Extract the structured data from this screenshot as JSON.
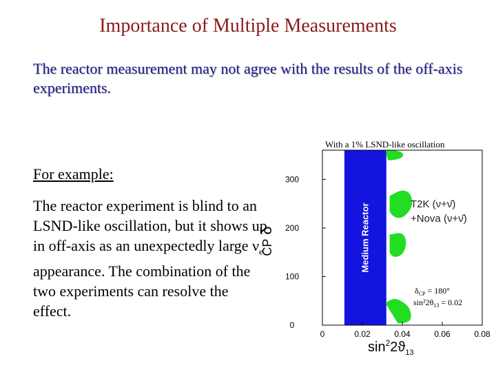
{
  "slide": {
    "title": "Importance of Multiple Measurements",
    "intro": "The reactor measurement may not agree with the results of the off-axis experiments.",
    "example_heading": "For example:",
    "body_part1": "The reactor experiment is blind to an LSND-like oscillation, but it shows up in off-axis as an unexpectedly large ν",
    "body_sub": "e",
    "body_part2": " appearance. The combination of the two experiments can resolve the effect."
  },
  "plot": {
    "caption": "With a 1% LSND-like oscillation",
    "band_label": "Medium Reactor",
    "legend_line1": "T2K (ν+ν̄)",
    "legend_line2": "+Nova (ν+ν̄)",
    "annot_delta": "δ",
    "annot_delta_sub": "CP",
    "annot_delta_value": " = 180°",
    "annot_sin": "sin²2θ",
    "annot_sin_sub": "13",
    "annot_sin_value": " = 0.02",
    "colors": {
      "band": "#1414e0",
      "region": "#22dd22",
      "frame": "#000000"
    }
  },
  "chart_data": {
    "type": "area",
    "title": "",
    "xlabel": "sin²2θ13",
    "ylabel": "δCP",
    "xlim": [
      0,
      0.08
    ],
    "ylim": [
      0,
      360
    ],
    "x_ticks": [
      "0",
      "0.02",
      "0.04",
      "0.06",
      "0.08"
    ],
    "y_ticks": [
      "0",
      "100",
      "200",
      "300"
    ],
    "bands": [
      {
        "name": "Medium Reactor",
        "x_range": [
          0.011,
          0.032
        ]
      }
    ],
    "regions": [
      {
        "name": "T2K (ν+ν̄)+Nova (ν+ν̄)",
        "points": [
          [
            0.032,
            360
          ],
          [
            0.04,
            356
          ],
          [
            0.04,
            345
          ],
          [
            0.034,
            340
          ],
          [
            0.032,
            342
          ]
        ]
      },
      {
        "name": "T2K (ν+ν̄)+Nova (ν+ν̄)",
        "points": [
          [
            0.034,
            265
          ],
          [
            0.04,
            278
          ],
          [
            0.044,
            270
          ],
          [
            0.045,
            245
          ],
          [
            0.04,
            220
          ],
          [
            0.035,
            225
          ],
          [
            0.033,
            245
          ]
        ]
      },
      {
        "name": "T2K (ν+ν̄)+Nova (ν+ν̄)",
        "points": [
          [
            0.034,
            185
          ],
          [
            0.04,
            190
          ],
          [
            0.042,
            170
          ],
          [
            0.04,
            145
          ],
          [
            0.035,
            140
          ],
          [
            0.033,
            160
          ]
        ]
      },
      {
        "name": "T2K (ν+ν̄)+Nova (ν+ν̄)",
        "points": [
          [
            0.032,
            45
          ],
          [
            0.036,
            55
          ],
          [
            0.041,
            45
          ],
          [
            0.044,
            30
          ],
          [
            0.044,
            5
          ],
          [
            0.032,
            5
          ]
        ]
      }
    ],
    "annotation": "δCP = 180°, sin²2θ13 = 0.02"
  }
}
